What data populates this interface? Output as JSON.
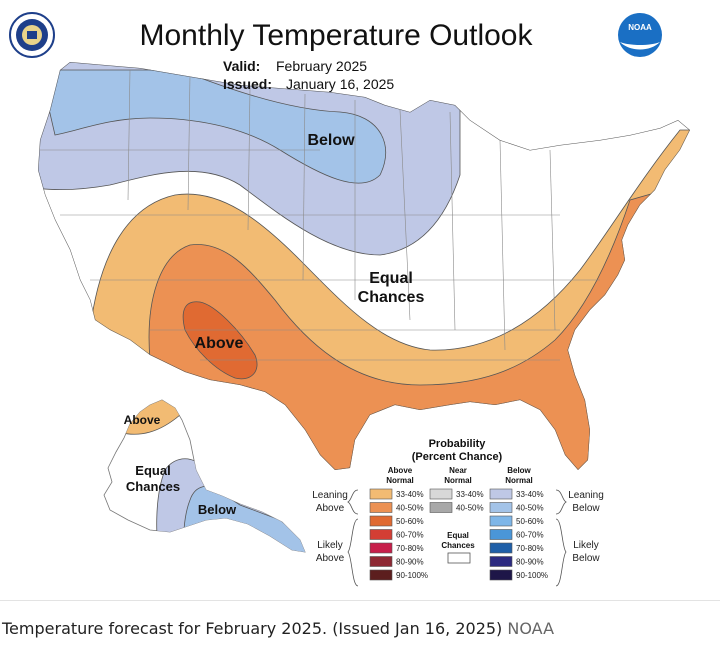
{
  "header": {
    "title": "Monthly Temperature Outlook",
    "valid_label": "Valid:",
    "valid_value": "February 2025",
    "issued_label": "Issued:",
    "issued_value": "January 16, 2025"
  },
  "logos": {
    "left": "commerce-seal-icon",
    "right_text": "NOAA"
  },
  "map_labels": {
    "below": "Below",
    "equal_1": "Equal",
    "equal_2": "Chances",
    "above": "Above",
    "ak_above": "Above",
    "ak_equal_1": "Equal",
    "ak_equal_2": "Chances",
    "ak_below": "Below"
  },
  "legend": {
    "title_1": "Probability",
    "title_2": "(Percent Chance)",
    "col_above_1": "Above",
    "col_above_2": "Normal",
    "col_near_1": "Near",
    "col_near_2": "Normal",
    "col_below_1": "Below",
    "col_below_2": "Normal",
    "leaning_above_1": "Leaning",
    "leaning_above_2": "Above",
    "likely_above_1": "Likely",
    "likely_above_2": "Above",
    "leaning_below_1": "Leaning",
    "leaning_below_2": "Below",
    "likely_below_1": "Likely",
    "likely_below_2": "Below",
    "equal_1": "Equal",
    "equal_2": "Chances",
    "above": [
      {
        "label": "33-40%",
        "color": "#F2BB73"
      },
      {
        "label": "40-50%",
        "color": "#EC9153"
      },
      {
        "label": "50-60%",
        "color": "#E06A32"
      },
      {
        "label": "60-70%",
        "color": "#D33E34"
      },
      {
        "label": "70-80%",
        "color": "#C71E4A"
      },
      {
        "label": "80-90%",
        "color": "#8E2833"
      },
      {
        "label": "90-100%",
        "color": "#5C1E1E"
      }
    ],
    "near": [
      {
        "label": "33-40%",
        "color": "#D8D8D8"
      },
      {
        "label": "40-50%",
        "color": "#A8A8A8"
      }
    ],
    "below": [
      {
        "label": "33-40%",
        "color": "#BFC8E6"
      },
      {
        "label": "40-50%",
        "color": "#A3C3E8"
      },
      {
        "label": "50-60%",
        "color": "#7EB6E8"
      },
      {
        "label": "60-70%",
        "color": "#4A96D8"
      },
      {
        "label": "70-80%",
        "color": "#1F5FA8"
      },
      {
        "label": "80-90%",
        "color": "#2C2A80"
      },
      {
        "label": "90-100%",
        "color": "#1E1648"
      }
    ]
  },
  "caption": {
    "text": "Temperature forecast for February 2025. (Issued Jan 16, 2025)",
    "credit": "NOAA"
  }
}
